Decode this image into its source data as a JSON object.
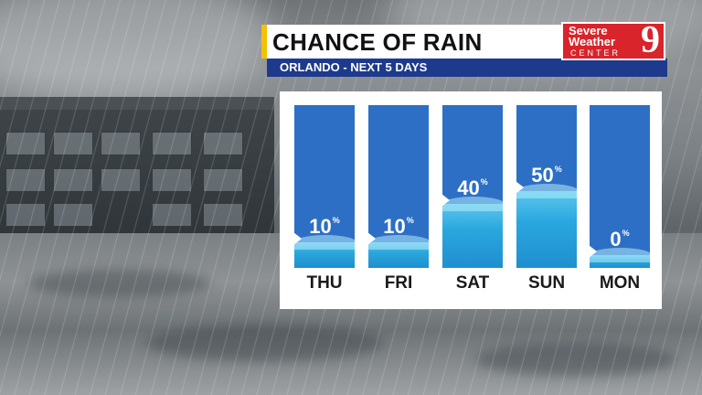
{
  "header": {
    "title": "CHANCE OF RAIN",
    "subtitle": "ORLANDO - NEXT 5 DAYS"
  },
  "logo": {
    "line1": "Severe",
    "line2": "Weather",
    "line3": "CENTER",
    "channel": "9"
  },
  "forecast": {
    "unit": "%",
    "days": [
      {
        "label": "THU",
        "value": "10",
        "fraction": 0.1
      },
      {
        "label": "FRI",
        "value": "10",
        "fraction": 0.1
      },
      {
        "label": "SAT",
        "value": "40",
        "fraction": 0.4
      },
      {
        "label": "SUN",
        "value": "50",
        "fraction": 0.5
      },
      {
        "label": "MON",
        "value": "0",
        "fraction": 0.0
      }
    ]
  },
  "colors": {
    "accent": "#f2c200",
    "subtitle_bar": "#1d3a8c",
    "column": "#2d6fc4",
    "water": "#2aa7de",
    "logo": "#d8242a"
  }
}
